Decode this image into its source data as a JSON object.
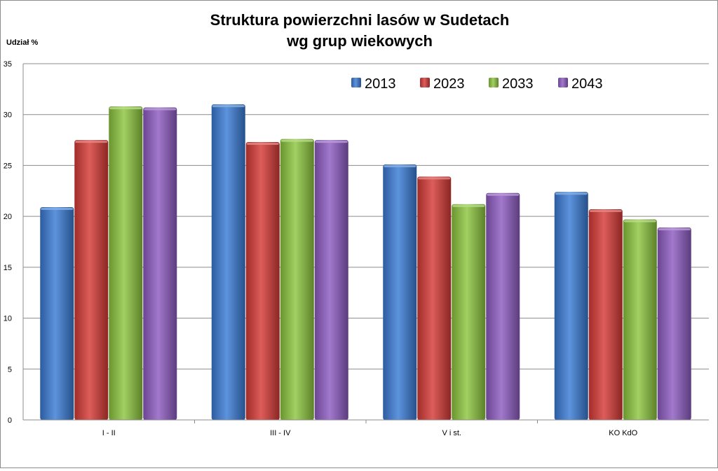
{
  "chart_data": {
    "type": "bar",
    "title_lines": [
      "Struktura powierzchni lasów w Sudetach",
      "wg grup wiekowych"
    ],
    "ylabel": "Udział %",
    "xlabel": "",
    "categories": [
      "I - II",
      "III - IV",
      "V i st.",
      "KO KdO"
    ],
    "series": [
      {
        "name": "2013",
        "values": [
          20.9,
          31.0,
          25.1,
          22.4
        ],
        "color": "#3A7BD5"
      },
      {
        "name": "2023",
        "values": [
          27.5,
          27.3,
          23.9,
          20.7
        ],
        "color": "#D63A36"
      },
      {
        "name": "2033",
        "values": [
          30.8,
          27.6,
          21.2,
          19.7
        ],
        "color": "#8DC63F"
      },
      {
        "name": "2043",
        "values": [
          30.7,
          27.5,
          22.3,
          18.9
        ],
        "color": "#8E5CC2"
      }
    ],
    "ylim": [
      0,
      35
    ],
    "yticks": [
      0,
      5,
      10,
      15,
      20,
      25,
      30,
      35
    ],
    "grid": true,
    "legend_position": "top-right"
  }
}
